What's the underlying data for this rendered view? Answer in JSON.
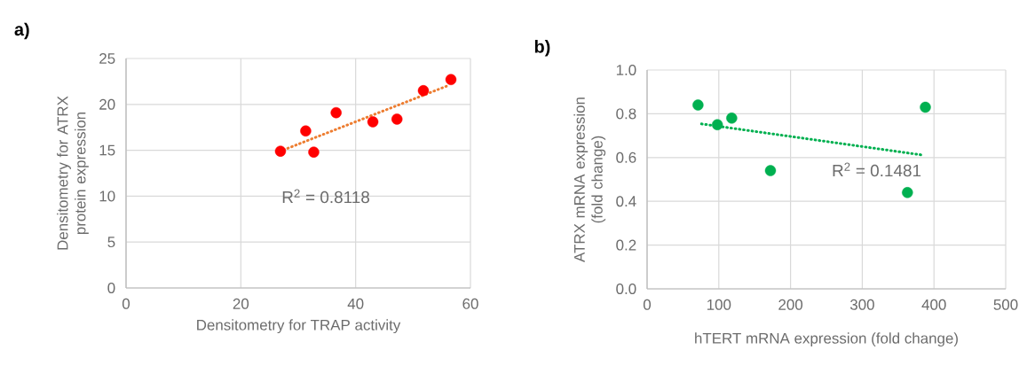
{
  "chart_data": [
    {
      "type": "scatter",
      "title": "a)",
      "xlabel": "Densitometry for TRAP activity",
      "ylabel": "Densitometry for ATRX protein expression",
      "annotations": [
        "R$^{2}$ = 0.8118"
      ],
      "xlim": [
        0,
        60
      ],
      "xticks": [
        0,
        20,
        40,
        60
      ],
      "ylim": [
        0,
        25
      ],
      "yticks": [
        0,
        5,
        10,
        15,
        20,
        25
      ],
      "grid": true,
      "series": [
        {
          "color": "#ff0000",
          "marker": "circle",
          "x": [
            26.9,
            31.3,
            32.7,
            36.6,
            43.0,
            47.2,
            51.8,
            56.6
          ],
          "values": [
            14.9,
            17.1,
            14.8,
            19.1,
            18.1,
            18.4,
            21.5,
            22.7
          ]
        },
        {
          "type": "line",
          "color": "#ed7d31",
          "marker": "none",
          "line_style": "dotted",
          "x": [
            26.9,
            56.3
          ],
          "values": [
            14.9,
            22.1
          ]
        }
      ]
    },
    {
      "type": "scatter",
      "title": "b)",
      "xlabel": "hTERT mRNA expression (fold change)",
      "ylabel": "ATRX mRNA expression (fold change)",
      "annotations": [
        "R$^{2}$ = 0.1481"
      ],
      "xlim": [
        0,
        500
      ],
      "xticks": [
        0,
        100,
        200,
        300,
        400,
        500
      ],
      "ylim": [
        0,
        1
      ],
      "yticks": [
        {
          "value": 0,
          "label": "0.0"
        },
        0.2,
        0.4,
        0.6,
        0.8,
        {
          "value": 1,
          "label": "1.0"
        }
      ],
      "grid": true,
      "series": [
        {
          "color": "#00b050",
          "marker": "circle",
          "x": [
            71,
            98,
            118,
            172,
            363,
            388
          ],
          "values": [
            0.84,
            0.75,
            0.78,
            0.54,
            0.44,
            0.83
          ]
        },
        {
          "type": "line",
          "color": "#00b050",
          "marker": "none",
          "line_style": "dotted",
          "x": [
            71,
            385
          ],
          "values": [
            0.756,
            0.611
          ]
        }
      ]
    }
  ]
}
